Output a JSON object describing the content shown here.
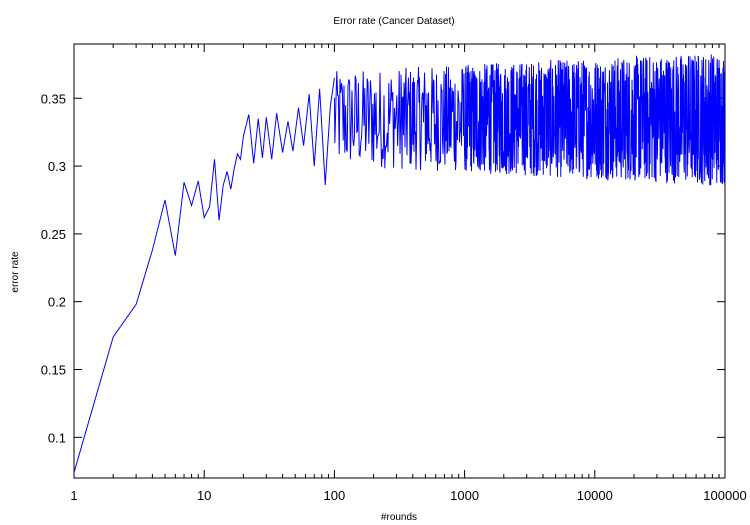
{
  "chart_data": {
    "type": "line",
    "title": "Error rate (Cancer Dataset)",
    "xlabel": "#rounds",
    "ylabel": "error rate",
    "x_scale": "log",
    "xlim": [
      1,
      100000
    ],
    "ylim": [
      0.07,
      0.39
    ],
    "x_ticks": [
      1,
      10,
      100,
      1000,
      10000,
      100000
    ],
    "x_tick_labels": [
      "1",
      "10",
      "100",
      "1000",
      "10000",
      "100000"
    ],
    "y_ticks": [
      0.1,
      0.15,
      0.2,
      0.25,
      0.3,
      0.35
    ],
    "y_tick_labels": [
      "0.1",
      "0.15",
      "0.2",
      "0.25",
      "0.3",
      "0.35"
    ],
    "grid": false,
    "line_color": "#0000ff",
    "series": [
      {
        "x": [
          1,
          2,
          3,
          4,
          5,
          6,
          7,
          8,
          9,
          10,
          11,
          12,
          13,
          14,
          15,
          16,
          17,
          18,
          19,
          20,
          22,
          24,
          26,
          28,
          30,
          33,
          36,
          40,
          44,
          48,
          53,
          58,
          64,
          70,
          77,
          85,
          93,
          100
        ],
        "y": [
          0.074,
          0.174,
          0.198,
          0.238,
          0.275,
          0.234,
          0.288,
          0.271,
          0.289,
          0.262,
          0.27,
          0.305,
          0.26,
          0.286,
          0.296,
          0.283,
          0.298,
          0.309,
          0.305,
          0.322,
          0.338,
          0.302,
          0.335,
          0.306,
          0.336,
          0.305,
          0.339,
          0.31,
          0.333,
          0.311,
          0.343,
          0.315,
          0.353,
          0.3,
          0.357,
          0.286,
          0.344,
          0.365
        ]
      },
      {
        "x": [
          100,
          1000,
          10000,
          100000
        ],
        "y_low": [
          0.3,
          0.295,
          0.29,
          0.285
        ],
        "y_high": [
          0.37,
          0.375,
          0.38,
          0.385
        ],
        "y_mean": [
          0.335,
          0.335,
          0.335,
          0.335
        ]
      }
    ]
  }
}
